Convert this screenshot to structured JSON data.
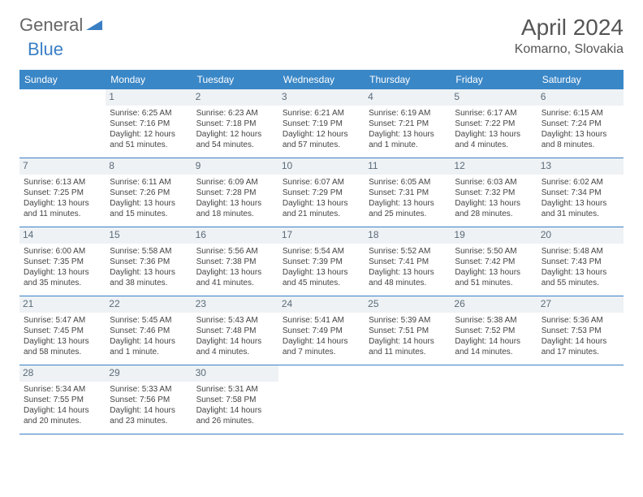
{
  "logo": {
    "part1": "General",
    "part2": "Blue"
  },
  "title": "April 2024",
  "location": "Komarno, Slovakia",
  "dayNames": [
    "Sunday",
    "Monday",
    "Tuesday",
    "Wednesday",
    "Thursday",
    "Friday",
    "Saturday"
  ],
  "colors": {
    "headerBg": "#3a87c7",
    "daynumBg": "#eef2f5",
    "border": "#3a7fc4",
    "logoBlue": "#3a7fc4"
  },
  "weeks": [
    [
      {
        "blank": true
      },
      {
        "n": "1",
        "sr": "Sunrise: 6:25 AM",
        "ss": "Sunset: 7:16 PM",
        "dl": "Daylight: 12 hours and 51 minutes."
      },
      {
        "n": "2",
        "sr": "Sunrise: 6:23 AM",
        "ss": "Sunset: 7:18 PM",
        "dl": "Daylight: 12 hours and 54 minutes."
      },
      {
        "n": "3",
        "sr": "Sunrise: 6:21 AM",
        "ss": "Sunset: 7:19 PM",
        "dl": "Daylight: 12 hours and 57 minutes."
      },
      {
        "n": "4",
        "sr": "Sunrise: 6:19 AM",
        "ss": "Sunset: 7:21 PM",
        "dl": "Daylight: 13 hours and 1 minute."
      },
      {
        "n": "5",
        "sr": "Sunrise: 6:17 AM",
        "ss": "Sunset: 7:22 PM",
        "dl": "Daylight: 13 hours and 4 minutes."
      },
      {
        "n": "6",
        "sr": "Sunrise: 6:15 AM",
        "ss": "Sunset: 7:24 PM",
        "dl": "Daylight: 13 hours and 8 minutes."
      }
    ],
    [
      {
        "n": "7",
        "sr": "Sunrise: 6:13 AM",
        "ss": "Sunset: 7:25 PM",
        "dl": "Daylight: 13 hours and 11 minutes."
      },
      {
        "n": "8",
        "sr": "Sunrise: 6:11 AM",
        "ss": "Sunset: 7:26 PM",
        "dl": "Daylight: 13 hours and 15 minutes."
      },
      {
        "n": "9",
        "sr": "Sunrise: 6:09 AM",
        "ss": "Sunset: 7:28 PM",
        "dl": "Daylight: 13 hours and 18 minutes."
      },
      {
        "n": "10",
        "sr": "Sunrise: 6:07 AM",
        "ss": "Sunset: 7:29 PM",
        "dl": "Daylight: 13 hours and 21 minutes."
      },
      {
        "n": "11",
        "sr": "Sunrise: 6:05 AM",
        "ss": "Sunset: 7:31 PM",
        "dl": "Daylight: 13 hours and 25 minutes."
      },
      {
        "n": "12",
        "sr": "Sunrise: 6:03 AM",
        "ss": "Sunset: 7:32 PM",
        "dl": "Daylight: 13 hours and 28 minutes."
      },
      {
        "n": "13",
        "sr": "Sunrise: 6:02 AM",
        "ss": "Sunset: 7:34 PM",
        "dl": "Daylight: 13 hours and 31 minutes."
      }
    ],
    [
      {
        "n": "14",
        "sr": "Sunrise: 6:00 AM",
        "ss": "Sunset: 7:35 PM",
        "dl": "Daylight: 13 hours and 35 minutes."
      },
      {
        "n": "15",
        "sr": "Sunrise: 5:58 AM",
        "ss": "Sunset: 7:36 PM",
        "dl": "Daylight: 13 hours and 38 minutes."
      },
      {
        "n": "16",
        "sr": "Sunrise: 5:56 AM",
        "ss": "Sunset: 7:38 PM",
        "dl": "Daylight: 13 hours and 41 minutes."
      },
      {
        "n": "17",
        "sr": "Sunrise: 5:54 AM",
        "ss": "Sunset: 7:39 PM",
        "dl": "Daylight: 13 hours and 45 minutes."
      },
      {
        "n": "18",
        "sr": "Sunrise: 5:52 AM",
        "ss": "Sunset: 7:41 PM",
        "dl": "Daylight: 13 hours and 48 minutes."
      },
      {
        "n": "19",
        "sr": "Sunrise: 5:50 AM",
        "ss": "Sunset: 7:42 PM",
        "dl": "Daylight: 13 hours and 51 minutes."
      },
      {
        "n": "20",
        "sr": "Sunrise: 5:48 AM",
        "ss": "Sunset: 7:43 PM",
        "dl": "Daylight: 13 hours and 55 minutes."
      }
    ],
    [
      {
        "n": "21",
        "sr": "Sunrise: 5:47 AM",
        "ss": "Sunset: 7:45 PM",
        "dl": "Daylight: 13 hours and 58 minutes."
      },
      {
        "n": "22",
        "sr": "Sunrise: 5:45 AM",
        "ss": "Sunset: 7:46 PM",
        "dl": "Daylight: 14 hours and 1 minute."
      },
      {
        "n": "23",
        "sr": "Sunrise: 5:43 AM",
        "ss": "Sunset: 7:48 PM",
        "dl": "Daylight: 14 hours and 4 minutes."
      },
      {
        "n": "24",
        "sr": "Sunrise: 5:41 AM",
        "ss": "Sunset: 7:49 PM",
        "dl": "Daylight: 14 hours and 7 minutes."
      },
      {
        "n": "25",
        "sr": "Sunrise: 5:39 AM",
        "ss": "Sunset: 7:51 PM",
        "dl": "Daylight: 14 hours and 11 minutes."
      },
      {
        "n": "26",
        "sr": "Sunrise: 5:38 AM",
        "ss": "Sunset: 7:52 PM",
        "dl": "Daylight: 14 hours and 14 minutes."
      },
      {
        "n": "27",
        "sr": "Sunrise: 5:36 AM",
        "ss": "Sunset: 7:53 PM",
        "dl": "Daylight: 14 hours and 17 minutes."
      }
    ],
    [
      {
        "n": "28",
        "sr": "Sunrise: 5:34 AM",
        "ss": "Sunset: 7:55 PM",
        "dl": "Daylight: 14 hours and 20 minutes."
      },
      {
        "n": "29",
        "sr": "Sunrise: 5:33 AM",
        "ss": "Sunset: 7:56 PM",
        "dl": "Daylight: 14 hours and 23 minutes."
      },
      {
        "n": "30",
        "sr": "Sunrise: 5:31 AM",
        "ss": "Sunset: 7:58 PM",
        "dl": "Daylight: 14 hours and 26 minutes."
      },
      {
        "blank": true
      },
      {
        "blank": true
      },
      {
        "blank": true
      },
      {
        "blank": true
      }
    ]
  ]
}
